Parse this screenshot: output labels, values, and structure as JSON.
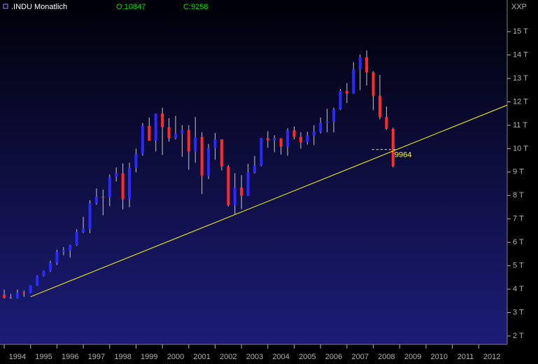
{
  "chart_data": {
    "type": "candlestick",
    "title": ".INDU Monatlich",
    "info": [
      {
        "value": 10847,
        "label": "O:10847"
      },
      {
        "value": 9258,
        "label": "C:9258"
      }
    ],
    "y_axis_label": "XXP",
    "x": [
      1994.0,
      1994.25,
      1994.5,
      1994.75,
      1995.0,
      1995.25,
      1995.5,
      1995.75,
      1996.0,
      1996.25,
      1996.5,
      1996.75,
      1997.0,
      1997.25,
      1997.5,
      1997.75,
      1998.0,
      1998.25,
      1998.5,
      1998.75,
      1999.0,
      1999.25,
      1999.5,
      1999.75,
      2000.0,
      2000.25,
      2000.5,
      2000.75,
      2001.0,
      2001.25,
      2001.5,
      2001.75,
      2002.0,
      2002.25,
      2002.5,
      2002.75,
      2003.0,
      2003.25,
      2003.5,
      2003.75,
      2004.0,
      2004.25,
      2004.5,
      2004.75,
      2005.0,
      2005.25,
      2005.5,
      2005.75,
      2006.0,
      2006.25,
      2006.5,
      2006.75,
      2007.0,
      2007.25,
      2007.5,
      2007.75,
      2008.0,
      2008.25,
      2008.5,
      2008.75
    ],
    "series": [
      {
        "up_color": "#2a2aff",
        "down_color": "#ff2a2a",
        "wick_color": "#c8c8c8",
        "open": [
          3750,
          3640,
          3620,
          3840,
          3830,
          4160,
          4560,
          4790,
          5120,
          5590,
          5650,
          5880,
          6450,
          6580,
          7670,
          7950,
          7910,
          8800,
          8950,
          7840,
          9180,
          9790,
          10970,
          10340,
          11500,
          10920,
          10450,
          10650,
          10790,
          9880,
          10500,
          8850,
          10020,
          10400,
          9240,
          7590,
          8340,
          7990,
          8990,
          9280,
          10450,
          10360,
          10440,
          10080,
          10780,
          10500,
          10270,
          10570,
          10720,
          11110,
          11150,
          11680,
          12460,
          12350,
          13400,
          13900,
          13260,
          12260,
          11350,
          10850
        ],
        "high": [
          3980,
          3800,
          3980,
          3940,
          4170,
          4590,
          4800,
          5220,
          5680,
          5800,
          5900,
          6560,
          7090,
          7800,
          8300,
          8250,
          8900,
          9200,
          9370,
          9400,
          10000,
          11100,
          11330,
          11500,
          11750,
          11300,
          11400,
          11000,
          11000,
          11350,
          10700,
          10200,
          10670,
          10400,
          9300,
          8950,
          8870,
          9350,
          9690,
          10460,
          10750,
          10570,
          10450,
          10870,
          10950,
          10700,
          10720,
          11000,
          11330,
          11700,
          11750,
          12550,
          12800,
          13700,
          14020,
          14200,
          13300,
          13150,
          11800,
          10900
        ],
        "low": [
          3600,
          3590,
          3600,
          3670,
          3830,
          4140,
          4540,
          4740,
          5030,
          5450,
          5350,
          5850,
          6400,
          6390,
          7600,
          7160,
          7540,
          8600,
          7400,
          7500,
          8990,
          9700,
          10400,
          9880,
          9730,
          10300,
          10400,
          9650,
          9100,
          9400,
          8060,
          8700,
          9530,
          9070,
          7530,
          7200,
          7420,
          7980,
          8940,
          9250,
          10040,
          9850,
          9750,
          9700,
          10400,
          10000,
          10180,
          10150,
          10650,
          10700,
          10700,
          11650,
          11950,
          12350,
          12500,
          12700,
          11650,
          11250,
          10800,
          9200
        ],
        "close": [
          3640,
          3620,
          3840,
          3830,
          4160,
          4560,
          4790,
          5120,
          5590,
          5650,
          5880,
          6450,
          6580,
          7670,
          7950,
          7910,
          8800,
          8950,
          7840,
          9180,
          9790,
          10970,
          10340,
          11500,
          10920,
          10450,
          10650,
          10790,
          9880,
          10500,
          8850,
          10020,
          10400,
          9240,
          7590,
          8340,
          7990,
          8990,
          9280,
          10450,
          10360,
          10440,
          10080,
          10780,
          10500,
          10270,
          10570,
          10720,
          11110,
          11150,
          11680,
          12460,
          12350,
          13400,
          13900,
          13260,
          12260,
          11350,
          10850,
          9260
        ]
      }
    ],
    "trend_line": {
      "x": [
        1995.0,
        2013.08
      ],
      "y": [
        3674,
        11862
      ],
      "color": "#ffff00"
    },
    "price_marker": {
      "value": 9964,
      "label": "9964",
      "color": "#ffff00"
    },
    "xlim": [
      1993.84,
      2013.08
    ],
    "xticks": [
      1994,
      1995,
      1996,
      1997,
      1998,
      1999,
      2000,
      2001,
      2002,
      2003,
      2004,
      2005,
      2006,
      2007,
      2008,
      2009,
      2010,
      2011,
      2012
    ],
    "ylim": [
      1640,
      16350
    ],
    "yticks": [
      {
        "value": 2000,
        "label": "2 T"
      },
      {
        "value": 3000,
        "label": "3 T"
      },
      {
        "value": 4000,
        "label": "4 T"
      },
      {
        "value": 5000,
        "label": "5 T"
      },
      {
        "value": 6000,
        "label": "6 T"
      },
      {
        "value": 7000,
        "label": "7 T"
      },
      {
        "value": 8000,
        "label": "8 T"
      },
      {
        "value": 9000,
        "label": "9 T"
      },
      {
        "value": 10000,
        "label": "10 T"
      },
      {
        "value": 11000,
        "label": "11 T"
      },
      {
        "value": 12000,
        "label": "12 T"
      },
      {
        "value": 13000,
        "label": "13 T"
      },
      {
        "value": 14000,
        "label": "14 T"
      },
      {
        "value": 15000,
        "label": "15 T"
      }
    ]
  }
}
